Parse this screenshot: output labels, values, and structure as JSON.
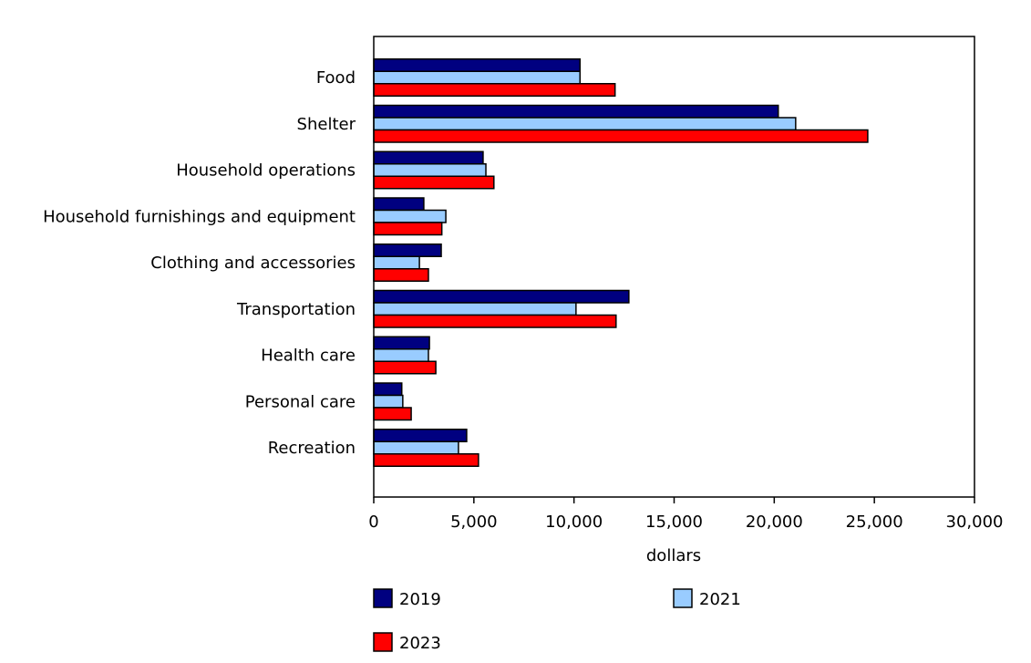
{
  "chart_data": {
    "type": "bar",
    "orientation": "horizontal",
    "categories": [
      "Food",
      "Shelter",
      "Household operations",
      "Household furnishings and equipment",
      "Clothing and accessories",
      "Transportation",
      "Health care",
      "Personal care",
      "Recreation"
    ],
    "series": [
      {
        "name": "2019",
        "color": "#000080",
        "values": [
          10300,
          20200,
          5460,
          2500,
          3370,
          12740,
          2780,
          1400,
          4640
        ]
      },
      {
        "name": "2021",
        "color": "#99ccff",
        "values": [
          10300,
          21070,
          5600,
          3600,
          2280,
          10100,
          2730,
          1450,
          4230
        ]
      },
      {
        "name": "2023",
        "color": "#ff0000",
        "values": [
          12050,
          24670,
          6000,
          3400,
          2730,
          12100,
          3100,
          1870,
          5230
        ]
      }
    ],
    "xlabel": "dollars",
    "ylabel": "",
    "xlim": [
      0,
      30000
    ],
    "xticks": [
      0,
      5000,
      10000,
      15000,
      20000,
      25000,
      30000
    ],
    "xtick_labels": [
      "0",
      "5,000",
      "10,000",
      "15,000",
      "20,000",
      "25,000",
      "30,000"
    ],
    "grid": false,
    "legend_position": "bottom"
  }
}
